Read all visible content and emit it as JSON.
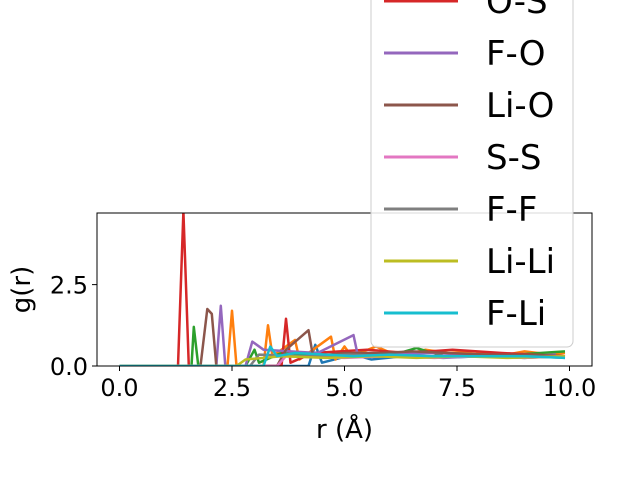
{
  "chart_data": {
    "type": "line",
    "title": "",
    "xlabel": "r (Å)",
    "ylabel": "g(r)",
    "xlim": [
      -0.5,
      10.5
    ],
    "ylim": [
      0,
      4.7
    ],
    "x_ticks": [
      {
        "value": 0,
        "label": "0.0"
      },
      {
        "value": 2.5,
        "label": "2.5"
      },
      {
        "value": 5,
        "label": "5.0"
      },
      {
        "value": 7.5,
        "label": "7.5"
      },
      {
        "value": 10,
        "label": "10.0"
      }
    ],
    "y_ticks": [
      {
        "value": 0,
        "label": "0.0"
      },
      {
        "value": 2.5,
        "label": "2.5"
      }
    ],
    "grid": false,
    "legend_position": "top-right (partially clipped above the figure)",
    "series": [
      {
        "color": "#1f77b4",
        "points": [
          [
            0,
            0
          ],
          [
            4.2,
            0
          ],
          [
            4.35,
            0.65
          ],
          [
            4.5,
            0.1
          ],
          [
            5.2,
            0.35
          ],
          [
            5.6,
            0.2
          ],
          [
            6.3,
            0.3
          ],
          [
            7.2,
            0.25
          ],
          [
            8.0,
            0.3
          ],
          [
            9.0,
            0.25
          ],
          [
            9.8,
            0.3
          ]
        ]
      },
      {
        "color": "#ff7f0e",
        "points": [
          [
            0,
            0
          ],
          [
            2.4,
            0
          ],
          [
            2.5,
            1.7
          ],
          [
            2.6,
            0
          ],
          [
            3.2,
            0
          ],
          [
            3.3,
            1.25
          ],
          [
            3.4,
            0.3
          ],
          [
            3.9,
            0.8
          ],
          [
            4.0,
            0.2
          ],
          [
            4.7,
            0.9
          ],
          [
            4.8,
            0.2
          ],
          [
            5.0,
            0.6
          ],
          [
            5.15,
            0.3
          ],
          [
            5.7,
            0.6
          ],
          [
            6.2,
            0.3
          ],
          [
            6.8,
            0.5
          ],
          [
            7.3,
            0.4
          ],
          [
            7.9,
            0.45
          ],
          [
            8.4,
            0.3
          ],
          [
            9.0,
            0.45
          ],
          [
            9.6,
            0.35
          ],
          [
            9.9,
            0.4
          ]
        ]
      },
      {
        "color": "#2ca02c",
        "points": [
          [
            0,
            0
          ],
          [
            1.6,
            0
          ],
          [
            1.65,
            1.2
          ],
          [
            1.75,
            0
          ],
          [
            2.8,
            0
          ],
          [
            3.0,
            0.5
          ],
          [
            3.1,
            0.1
          ],
          [
            3.6,
            0.4
          ],
          [
            4.5,
            0.3
          ],
          [
            5.3,
            0.4
          ],
          [
            6.1,
            0.35
          ],
          [
            6.6,
            0.55
          ],
          [
            7.2,
            0.3
          ],
          [
            7.9,
            0.35
          ],
          [
            8.8,
            0.35
          ],
          [
            9.9,
            0.45
          ]
        ]
      },
      {
        "name": "O-S",
        "color": "#d62728",
        "points": [
          [
            0,
            0
          ],
          [
            1.3,
            0
          ],
          [
            1.42,
            4.75
          ],
          [
            1.54,
            0
          ],
          [
            3.6,
            0
          ],
          [
            3.7,
            1.45
          ],
          [
            3.8,
            0.1
          ],
          [
            4.3,
            0.4
          ],
          [
            5.5,
            0.5
          ],
          [
            6.4,
            0.4
          ],
          [
            7.4,
            0.5
          ],
          [
            8.5,
            0.4
          ],
          [
            9.2,
            0.35
          ],
          [
            9.9,
            0.3
          ]
        ]
      },
      {
        "name": "F-O",
        "color": "#9467bd",
        "points": [
          [
            0,
            0
          ],
          [
            2.15,
            0
          ],
          [
            2.25,
            1.85
          ],
          [
            2.35,
            0
          ],
          [
            2.8,
            0
          ],
          [
            2.95,
            0.75
          ],
          [
            3.2,
            0.5
          ],
          [
            4.4,
            0.4
          ],
          [
            5.2,
            0.95
          ],
          [
            5.3,
            0.3
          ],
          [
            6.0,
            0.35
          ],
          [
            6.9,
            0.4
          ],
          [
            7.9,
            0.35
          ],
          [
            8.9,
            0.3
          ],
          [
            9.7,
            0.35
          ]
        ]
      },
      {
        "name": "Li-O",
        "color": "#8c564b",
        "points": [
          [
            0,
            0
          ],
          [
            1.8,
            0
          ],
          [
            1.95,
            1.75
          ],
          [
            2.05,
            1.6
          ],
          [
            2.15,
            0
          ],
          [
            3.5,
            0
          ],
          [
            3.7,
            0.5
          ],
          [
            4.2,
            1.1
          ],
          [
            4.3,
            0.3
          ],
          [
            5.0,
            0.4
          ],
          [
            5.8,
            0.4
          ],
          [
            6.5,
            0.45
          ],
          [
            7.3,
            0.4
          ],
          [
            8.2,
            0.35
          ],
          [
            9.1,
            0.35
          ],
          [
            9.9,
            0.3
          ]
        ]
      },
      {
        "name": "S-S",
        "color": "#e377c2",
        "points": [
          [
            0,
            0
          ],
          [
            3.5,
            0
          ],
          [
            3.7,
            0.3
          ],
          [
            5.0,
            0.25
          ],
          [
            6.0,
            0.3
          ],
          [
            7.0,
            0.25
          ],
          [
            8.0,
            0.3
          ],
          [
            9.0,
            0.25
          ],
          [
            9.9,
            0.3
          ]
        ]
      },
      {
        "name": "F-F",
        "color": "#7f7f7f",
        "points": [
          [
            0,
            0
          ],
          [
            2.9,
            0
          ],
          [
            3.1,
            0.35
          ],
          [
            4.1,
            0.3
          ],
          [
            5.1,
            0.35
          ],
          [
            6.1,
            0.3
          ],
          [
            7.1,
            0.3
          ],
          [
            8.1,
            0.3
          ],
          [
            9.1,
            0.3
          ],
          [
            9.9,
            0.25
          ]
        ]
      },
      {
        "name": "Li-Li",
        "color": "#bcbd22",
        "points": [
          [
            0,
            0
          ],
          [
            2.6,
            0
          ],
          [
            2.8,
            0.2
          ],
          [
            3.6,
            0.3
          ],
          [
            4.6,
            0.25
          ],
          [
            5.6,
            0.3
          ],
          [
            6.6,
            0.25
          ],
          [
            7.6,
            0.3
          ],
          [
            8.6,
            0.25
          ],
          [
            9.9,
            0.3
          ]
        ]
      },
      {
        "name": "F-Li",
        "color": "#17becf",
        "points": [
          [
            0,
            0
          ],
          [
            3.2,
            0
          ],
          [
            3.35,
            0.6
          ],
          [
            3.5,
            0.3
          ],
          [
            3.9,
            0.4
          ],
          [
            4.6,
            0.35
          ],
          [
            5.2,
            0.3
          ],
          [
            6.0,
            0.35
          ],
          [
            7.0,
            0.3
          ],
          [
            8.0,
            0.3
          ],
          [
            9.0,
            0.3
          ],
          [
            9.9,
            0.25
          ]
        ]
      }
    ],
    "legend": [
      {
        "label": "O-S",
        "color": "#d62728"
      },
      {
        "label": "F-O",
        "color": "#9467bd"
      },
      {
        "label": "Li-O",
        "color": "#8c564b"
      },
      {
        "label": "S-S",
        "color": "#e377c2"
      },
      {
        "label": "F-F",
        "color": "#7f7f7f"
      },
      {
        "label": "Li-Li",
        "color": "#bcbd22"
      },
      {
        "label": "F-Li",
        "color": "#17becf"
      }
    ]
  }
}
